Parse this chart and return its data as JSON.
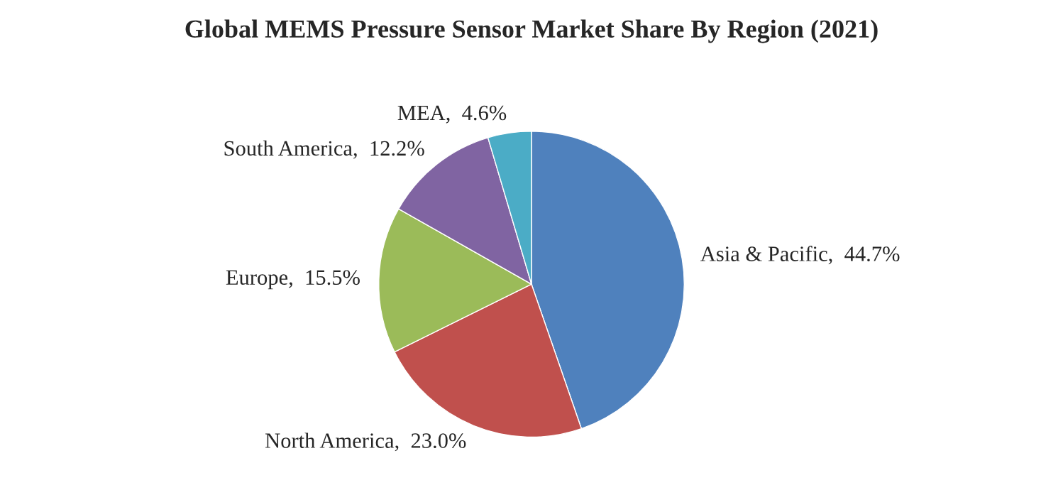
{
  "chart_data": {
    "type": "pie",
    "title": "Global MEMS Pressure Sensor Market Share By Region (2021)",
    "categories": [
      "Asia & Pacific",
      "North America",
      "Europe",
      "South America",
      "MEA"
    ],
    "values": [
      44.7,
      23.0,
      15.5,
      12.2,
      4.6
    ],
    "value_labels": [
      "44.7%",
      "23.0%",
      "15.5%",
      "12.2%",
      "4.6%"
    ],
    "colors": [
      "#4f81bd",
      "#c0504d",
      "#9bbb59",
      "#8064a2",
      "#4bacc6"
    ],
    "legend": false
  }
}
